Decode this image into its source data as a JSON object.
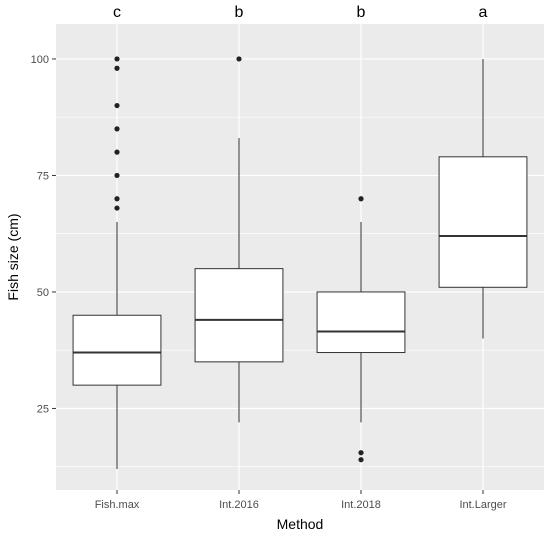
{
  "chart_data": {
    "type": "box",
    "xlabel": "Method",
    "ylabel": "Fish size (cm)",
    "ylim": [
      7.5,
      107.5
    ],
    "yticks": [
      25,
      50,
      75,
      100
    ],
    "grid": true,
    "categories": [
      "Fish.max",
      "Int.2016",
      "Int.2018",
      "Int.Larger"
    ],
    "boxes": [
      {
        "category": "Fish.max",
        "whisker_low": 12,
        "q1": 30,
        "median": 37,
        "q3": 45,
        "whisker_high": 65,
        "outliers": [
          68,
          70,
          75,
          80,
          85,
          90,
          98,
          100
        ],
        "significance": "c"
      },
      {
        "category": "Int.2016",
        "whisker_low": 22,
        "q1": 35,
        "median": 44,
        "q3": 55,
        "whisker_high": 83,
        "outliers": [
          100
        ],
        "significance": "b"
      },
      {
        "category": "Int.2018",
        "whisker_low": 22,
        "q1": 37,
        "median": 41.5,
        "q3": 50,
        "whisker_high": 65,
        "outliers": [
          14,
          15.5,
          70
        ],
        "significance": "b"
      },
      {
        "category": "Int.Larger",
        "whisker_low": 40,
        "q1": 51,
        "median": 62,
        "q3": 79,
        "whisker_high": 100,
        "outliers": [],
        "significance": "a"
      }
    ],
    "colors": {
      "panel": "#ebebeb",
      "grid": "#ffffff",
      "box_fill": "#ffffff",
      "box_stroke": "#333333",
      "point": "#222222"
    }
  }
}
